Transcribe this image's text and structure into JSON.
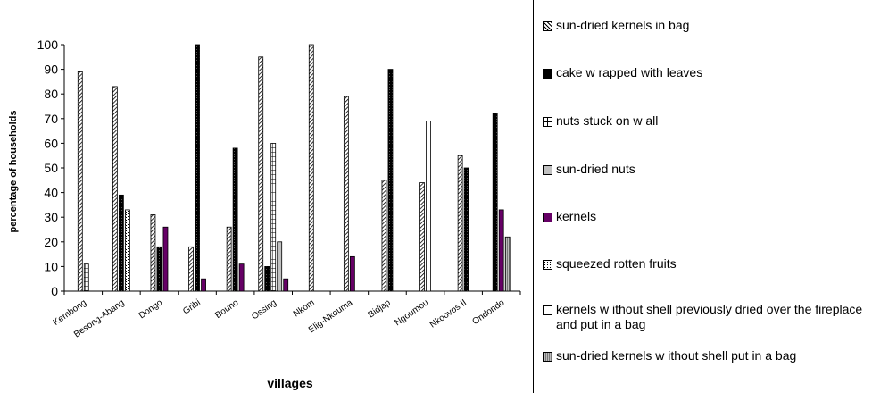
{
  "chart_data": {
    "type": "bar",
    "xlabel": "villages",
    "ylabel": "percentage of households",
    "ylim": [
      0,
      100
    ],
    "yticks": [
      0,
      10,
      20,
      30,
      40,
      50,
      60,
      70,
      80,
      90,
      100
    ],
    "categories": [
      "Kembong",
      "Besong-Abang",
      "Dongo",
      "Gribi",
      "Bouno",
      "Ossing",
      "Nkom",
      "Elig-Nkouma",
      "Bidjap",
      "Ngoumou",
      "Nkoovos II",
      "Ondondo"
    ],
    "series": [
      {
        "name": "sun-dried kernels in bag",
        "pattern": "diag",
        "color": "#000000",
        "values": [
          89,
          83,
          31,
          18,
          26,
          95,
          100,
          79,
          45,
          44,
          55,
          0
        ]
      },
      {
        "name": "cake w rapped with leaves",
        "pattern": "dots",
        "color": "#000000",
        "values": [
          0,
          39,
          18,
          100,
          58,
          10,
          0,
          0,
          90,
          0,
          50,
          72
        ]
      },
      {
        "name": "nuts stuck on w all",
        "pattern": "grid",
        "color": "#000000",
        "values": [
          11,
          0,
          0,
          0,
          0,
          60,
          0,
          0,
          0,
          0,
          0,
          0
        ]
      },
      {
        "name": "sun-dried nuts",
        "pattern": "gray",
        "color": "#c0c0c0",
        "values": [
          0,
          0,
          0,
          0,
          0,
          20,
          0,
          0,
          0,
          0,
          0,
          0
        ]
      },
      {
        "name": "kernels",
        "pattern": "solid",
        "color": "#660066",
        "values": [
          0,
          0,
          26,
          5,
          11,
          5,
          0,
          14,
          0,
          0,
          0,
          33
        ]
      },
      {
        "name": "squeezed rotten fruits",
        "pattern": "stipple",
        "color": "#000000",
        "values": [
          0,
          33,
          0,
          0,
          0,
          0,
          0,
          0,
          0,
          0,
          0,
          0
        ]
      },
      {
        "name": "kernels w ithout shell previously dried over the fireplace and put in a bag",
        "pattern": "white",
        "color": "#ffffff",
        "values": [
          0,
          0,
          0,
          0,
          0,
          0,
          0,
          0,
          0,
          69,
          0,
          0
        ]
      },
      {
        "name": "sun-dried kernels w ithout shell put in a bag",
        "pattern": "vgray",
        "color": "#888888",
        "values": [
          0,
          0,
          0,
          0,
          0,
          0,
          0,
          0,
          0,
          0,
          0,
          22
        ]
      }
    ]
  }
}
